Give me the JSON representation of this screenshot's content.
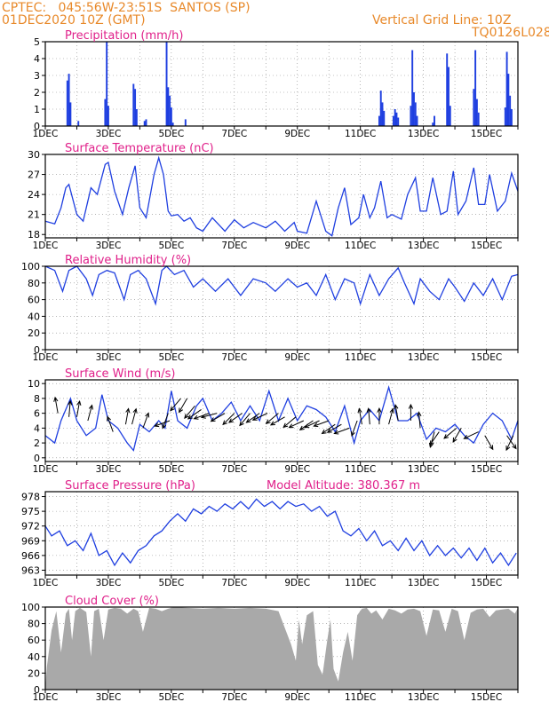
{
  "header": {
    "line1": "CPTEC:   045:56W-23:51S  SANTOS (SP)",
    "line2": "01DEC2020 10Z (GMT)",
    "right1": "Vertical Grid Line: 10Z",
    "right2": "TQ0126L028"
  },
  "colors": {
    "header": "#e8892a",
    "title": "#e0208a",
    "line": "#1f3fe0",
    "bars": "#1f3fe0",
    "cloud": "#a9a9a9",
    "grid": "#888888"
  },
  "chart_data": [
    {
      "type": "bar",
      "title": "Precipitation (mm/h)",
      "ylim": [
        0,
        5
      ],
      "yticks": [
        0,
        1,
        2,
        3,
        4,
        5
      ],
      "xlim_days": [
        1,
        16
      ],
      "xticks": [
        "1DEC",
        "3DEC",
        "5DEC",
        "7DEC",
        "9DEC",
        "11DEC",
        "13DEC",
        "15DEC"
      ],
      "x_day": [
        1.7,
        1.75,
        1.8,
        2.05,
        2.9,
        2.95,
        3.0,
        3.8,
        3.85,
        3.9,
        4.15,
        4.2,
        4.85,
        4.9,
        4.95,
        5.0,
        5.05,
        5.45,
        11.6,
        11.65,
        11.7,
        11.75,
        12.05,
        12.1,
        12.15,
        12.2,
        12.6,
        12.65,
        12.7,
        12.75,
        12.8,
        13.3,
        13.35,
        13.75,
        13.8,
        13.85,
        14.6,
        14.65,
        14.7,
        14.75,
        15.6,
        15.65,
        15.7,
        15.75,
        15.8
      ],
      "values": [
        2.7,
        3.1,
        1.4,
        0.3,
        1.6,
        5.0,
        1.2,
        2.5,
        2.2,
        1.0,
        0.3,
        0.4,
        5.0,
        2.3,
        1.8,
        1.1,
        0.2,
        0.4,
        0.6,
        2.1,
        1.4,
        0.9,
        0.6,
        1.0,
        0.8,
        0.5,
        1.2,
        4.5,
        2.0,
        1.4,
        0.6,
        0.2,
        0.6,
        4.3,
        3.5,
        1.2,
        2.2,
        4.5,
        1.6,
        0.8,
        1.1,
        4.4,
        3.1,
        1.8,
        1.0
      ]
    },
    {
      "type": "line",
      "title": "Surface Temperature (nC)",
      "ylim": [
        17.5,
        30
      ],
      "yticks": [
        18,
        21,
        24,
        27,
        30
      ],
      "xlim_days": [
        1,
        16
      ],
      "xticks": [
        "1DEC",
        "3DEC",
        "5DEC",
        "7DEC",
        "9DEC",
        "11DEC",
        "13DEC",
        "15DEC"
      ],
      "x": [
        1,
        1.3,
        1.5,
        1.65,
        1.75,
        2.0,
        2.2,
        2.45,
        2.65,
        2.9,
        3.0,
        3.2,
        3.45,
        3.65,
        3.85,
        4.0,
        4.2,
        4.45,
        4.6,
        4.75,
        4.9,
        5.0,
        5.2,
        5.4,
        5.6,
        5.8,
        6.0,
        6.3,
        6.7,
        7.0,
        7.3,
        7.6,
        8.0,
        8.3,
        8.6,
        8.9,
        9.0,
        9.3,
        9.6,
        9.9,
        10.1,
        10.3,
        10.5,
        10.7,
        10.95,
        11.1,
        11.3,
        11.45,
        11.65,
        11.85,
        12.0,
        12.3,
        12.5,
        12.75,
        12.9,
        13.1,
        13.3,
        13.55,
        13.75,
        13.95,
        14.1,
        14.35,
        14.6,
        14.75,
        14.95,
        15.1,
        15.35,
        15.6,
        15.8,
        16.0
      ],
      "values": [
        20,
        19.6,
        22,
        25,
        25.5,
        21,
        20,
        25,
        24,
        28.5,
        28.8,
        24.5,
        21,
        25,
        28.3,
        22,
        20.5,
        27,
        29.5,
        27,
        21.5,
        20.8,
        21,
        20,
        20.5,
        19,
        18.5,
        20.5,
        18.5,
        20.2,
        19,
        19.8,
        19,
        20,
        18.5,
        19.8,
        18.5,
        18.2,
        23,
        18.5,
        17.8,
        22,
        25,
        19.5,
        20.5,
        24,
        20.5,
        22,
        26,
        20.5,
        21,
        20.3,
        24,
        26.5,
        21.5,
        21.5,
        26.5,
        21,
        21.5,
        27.5,
        21,
        23,
        28,
        22.5,
        22.5,
        27,
        21.5,
        23,
        27.2,
        24.5
      ]
    },
    {
      "type": "line",
      "title": "Relative Humidity (%)",
      "ylim": [
        0,
        100
      ],
      "yticks": [
        0,
        20,
        40,
        60,
        80,
        100
      ],
      "xlim_days": [
        1,
        16
      ],
      "xticks": [
        "1DEC",
        "3DEC",
        "5DEC",
        "7DEC",
        "9DEC",
        "11DEC",
        "13DEC",
        "15DEC"
      ],
      "x": [
        1,
        1.3,
        1.55,
        1.75,
        2.0,
        2.3,
        2.5,
        2.7,
        2.95,
        3.2,
        3.5,
        3.7,
        3.95,
        4.2,
        4.5,
        4.7,
        4.85,
        5.1,
        5.4,
        5.7,
        6.0,
        6.4,
        6.8,
        7.2,
        7.6,
        8.0,
        8.3,
        8.7,
        9.0,
        9.3,
        9.6,
        9.9,
        10.2,
        10.5,
        10.8,
        11.0,
        11.3,
        11.6,
        11.9,
        12.2,
        12.4,
        12.7,
        12.9,
        13.2,
        13.5,
        13.8,
        14.0,
        14.3,
        14.6,
        14.9,
        15.2,
        15.5,
        15.8,
        16.0
      ],
      "values": [
        100,
        95,
        70,
        95,
        100,
        85,
        65,
        90,
        95,
        92,
        60,
        90,
        95,
        85,
        55,
        95,
        100,
        90,
        95,
        75,
        85,
        70,
        85,
        65,
        85,
        80,
        70,
        85,
        75,
        80,
        65,
        90,
        60,
        85,
        80,
        55,
        90,
        65,
        85,
        98,
        80,
        55,
        85,
        70,
        60,
        85,
        75,
        58,
        80,
        65,
        85,
        60,
        88,
        90
      ]
    },
    {
      "type": "line",
      "title": "Surface Wind (m/s)",
      "ylim": [
        -0.5,
        10.5
      ],
      "yticks": [
        0,
        2,
        4,
        6,
        8,
        10
      ],
      "xlim_days": [
        1,
        16
      ],
      "xticks": [
        "1DEC",
        "3DEC",
        "5DEC",
        "7DEC",
        "9DEC",
        "11DEC",
        "13DEC",
        "15DEC"
      ],
      "x": [
        1,
        1.3,
        1.5,
        1.8,
        2.0,
        2.3,
        2.6,
        2.8,
        3.0,
        3.3,
        3.6,
        3.8,
        4.0,
        4.3,
        4.6,
        4.8,
        5.0,
        5.2,
        5.5,
        5.8,
        6.0,
        6.3,
        6.6,
        6.9,
        7.2,
        7.5,
        7.8,
        8.1,
        8.4,
        8.7,
        9.0,
        9.3,
        9.6,
        9.9,
        10.2,
        10.5,
        10.8,
        11.0,
        11.3,
        11.6,
        11.9,
        12.2,
        12.5,
        12.8,
        13.1,
        13.4,
        13.7,
        14.0,
        14.3,
        14.6,
        14.9,
        15.2,
        15.5,
        15.8,
        16.0
      ],
      "values": [
        3,
        2,
        5,
        8,
        5,
        3,
        4,
        8.5,
        5,
        4,
        2,
        1,
        4.5,
        3.5,
        5,
        4,
        9,
        5,
        4,
        7,
        8,
        5,
        6,
        7.5,
        5,
        7,
        5,
        9,
        5,
        8,
        5,
        7,
        6.5,
        5.5,
        3.5,
        7,
        2,
        5,
        6.5,
        5,
        9.5,
        5,
        5,
        6,
        2.5,
        4,
        3.5,
        4.5,
        3,
        2,
        4.5,
        6,
        5,
        2.5,
        5
      ]
    },
    {
      "type": "line",
      "title": "Surface Pressure (hPa)",
      "subtitle": "Model Altitude: 380.367 m",
      "ylim": [
        962,
        979
      ],
      "yticks": [
        963,
        966,
        969,
        972,
        975,
        978
      ],
      "xlim_days": [
        1,
        16
      ],
      "xticks": [
        "1DEC",
        "3DEC",
        "5DEC",
        "7DEC",
        "9DEC",
        "11DEC",
        "13DEC",
        "15DEC"
      ],
      "x": [
        1,
        1.2,
        1.45,
        1.7,
        1.95,
        2.2,
        2.45,
        2.7,
        2.95,
        3.2,
        3.45,
        3.7,
        3.95,
        4.2,
        4.45,
        4.7,
        4.95,
        5.2,
        5.45,
        5.7,
        5.95,
        6.2,
        6.45,
        6.7,
        6.95,
        7.2,
        7.45,
        7.7,
        7.95,
        8.2,
        8.45,
        8.7,
        8.95,
        9.2,
        9.45,
        9.7,
        9.95,
        10.2,
        10.45,
        10.7,
        10.95,
        11.2,
        11.45,
        11.7,
        11.95,
        12.2,
        12.45,
        12.7,
        12.95,
        13.2,
        13.45,
        13.7,
        13.95,
        14.2,
        14.45,
        14.7,
        14.95,
        15.2,
        15.45,
        15.7,
        15.95
      ],
      "values": [
        972,
        970,
        971,
        968,
        969,
        967,
        970.5,
        966,
        967,
        964,
        966.5,
        964.5,
        967,
        968,
        970,
        971,
        973,
        974.5,
        973,
        975.5,
        974.5,
        976,
        975,
        976.5,
        975.5,
        977,
        975.5,
        977.5,
        976,
        977,
        975.5,
        977,
        976,
        976.5,
        975,
        976,
        974,
        975,
        971,
        970,
        971.5,
        969,
        971,
        968,
        969,
        967,
        969.5,
        967,
        969,
        966,
        968,
        966,
        967.5,
        965.5,
        967.5,
        965,
        967.5,
        964.5,
        966.5,
        964,
        966.5
      ]
    },
    {
      "type": "area",
      "title": "Cloud Cover (%)",
      "ylim": [
        0,
        100
      ],
      "yticks": [
        0,
        20,
        40,
        60,
        80,
        100
      ],
      "xlim_days": [
        1,
        16
      ],
      "xticks": [
        "1DEC",
        "3DEC",
        "5DEC",
        "7DEC",
        "9DEC",
        "11DEC",
        "13DEC",
        "15DEC"
      ],
      "x": [
        1,
        1.05,
        1.2,
        1.35,
        1.5,
        1.65,
        1.75,
        1.85,
        1.95,
        2.1,
        2.3,
        2.45,
        2.55,
        2.7,
        2.85,
        3.0,
        3.2,
        3.4,
        3.6,
        3.8,
        3.95,
        4.1,
        4.3,
        4.5,
        4.7,
        4.9,
        5.1,
        5.5,
        6.0,
        6.5,
        7.0,
        7.5,
        8.0,
        8.4,
        8.6,
        8.8,
        8.95,
        9.05,
        9.15,
        9.3,
        9.5,
        9.65,
        9.8,
        9.95,
        10.05,
        10.15,
        10.3,
        10.45,
        10.6,
        10.75,
        10.9,
        11.05,
        11.2,
        11.35,
        11.5,
        11.7,
        11.9,
        12.1,
        12.3,
        12.5,
        12.7,
        12.9,
        13.1,
        13.3,
        13.5,
        13.7,
        13.9,
        14.1,
        14.3,
        14.5,
        14.7,
        14.9,
        15.1,
        15.3,
        15.5,
        15.7,
        15.9,
        16.0
      ],
      "values": [
        0,
        28,
        72,
        95,
        45,
        92,
        98,
        60,
        95,
        99,
        94,
        40,
        95,
        98,
        60,
        97,
        99,
        98,
        92,
        98,
        95,
        70,
        99,
        98,
        95,
        98,
        100,
        99,
        98,
        99,
        98,
        99,
        98,
        95,
        75,
        55,
        35,
        85,
        55,
        90,
        95,
        30,
        18,
        60,
        85,
        25,
        10,
        45,
        70,
        35,
        90,
        98,
        99,
        92,
        96,
        85,
        98,
        96,
        92,
        97,
        98,
        95,
        65,
        97,
        96,
        70,
        98,
        95,
        60,
        93,
        97,
        98,
        88,
        96,
        97,
        98,
        92,
        99
      ]
    }
  ],
  "wind_arrows": {
    "x_day": [
      1.4,
      1.75,
      2.0,
      2.35,
      3.15,
      3.55,
      3.75,
      4.1,
      4.9,
      4.95,
      5.3,
      5.5,
      5.75,
      5.95,
      6.2,
      6.45,
      6.7,
      7.0,
      7.25,
      7.5,
      7.8,
      8.05,
      8.4,
      8.6,
      8.95,
      9.2,
      9.5,
      9.7,
      10.0,
      10.2,
      10.4,
      10.65,
      10.9,
      11.05,
      11.3,
      11.6,
      11.9,
      12.2,
      12.6,
      12.9,
      13.35,
      13.5,
      14.05,
      14.2,
      14.75,
      14.95,
      15.65,
      15.85
    ],
    "dir_deg": [
      100,
      85,
      80,
      75,
      110,
      80,
      75,
      70,
      250,
      200,
      230,
      240,
      230,
      215,
      200,
      195,
      210,
      225,
      215,
      230,
      215,
      205,
      220,
      210,
      220,
      205,
      215,
      205,
      200,
      215,
      210,
      200,
      250,
      100,
      95,
      90,
      75,
      100,
      90,
      95,
      255,
      235,
      220,
      240,
      205,
      300,
      305,
      245
    ],
    "speed": [
      6,
      5.5,
      5.5,
      5,
      3.5,
      4.5,
      4.5,
      4,
      6,
      5,
      8,
      8,
      7,
      6.5,
      6,
      6,
      6,
      6,
      6,
      6,
      6,
      6,
      6,
      5.5,
      5.5,
      5,
      5,
      5,
      5,
      4.5,
      4.5,
      4,
      5,
      4.5,
      4.5,
      4.5,
      4.5,
      5,
      5,
      4,
      3.5,
      3.5,
      4,
      4,
      3.5,
      3,
      3,
      3
    ]
  },
  "dates_note_hidden": ""
}
